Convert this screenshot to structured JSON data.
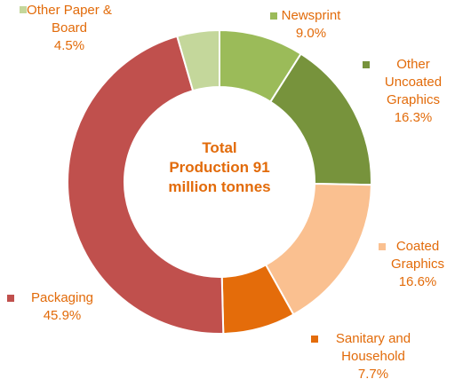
{
  "chart_data": {
    "type": "donut",
    "center_text": "Total Production 91 million tonnes",
    "categories": [
      "Newsprint",
      "Other Uncoated Graphics",
      "Coated Graphics",
      "Sanitary and Household",
      "Packaging",
      "Other Paper & Board"
    ],
    "values": [
      9.0,
      16.3,
      16.6,
      7.7,
      45.9,
      4.5
    ],
    "value_labels": [
      "9.0%",
      "16.3%",
      "16.6%",
      "7.7%",
      "45.9%",
      "4.5%"
    ],
    "colors": [
      "#9bbb59",
      "#77933c",
      "#fac090",
      "#e46c0a",
      "#c0504d",
      "#c4d79b"
    ]
  }
}
